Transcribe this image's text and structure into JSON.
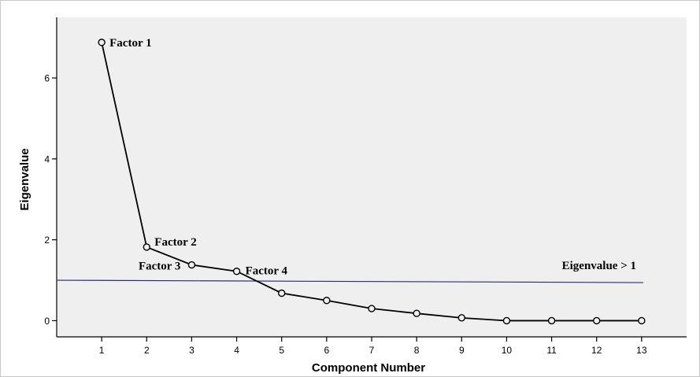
{
  "chart_data": {
    "type": "line",
    "title": "",
    "xlabel": "Component Number",
    "ylabel": "Eigenvalue",
    "x": [
      1,
      2,
      3,
      4,
      5,
      6,
      7,
      8,
      9,
      10,
      11,
      12,
      13
    ],
    "series": [
      {
        "values": [
          6.88,
          1.82,
          1.38,
          1.22,
          0.68,
          0.5,
          0.3,
          0.18,
          0.07,
          0.0,
          0.0,
          0.0,
          0.0
        ]
      }
    ],
    "xticks": [
      "1",
      "2",
      "3",
      "4",
      "5",
      "6",
      "7",
      "8",
      "9",
      "10",
      "11",
      "12",
      "13"
    ],
    "yticks": [
      "0",
      "2",
      "4",
      "6"
    ],
    "xlim": [
      0,
      14
    ],
    "ylim": [
      -0.4,
      7.5
    ],
    "grid": false,
    "reference_line": {
      "y": 1.0,
      "label": "Eigenvalue > 1"
    },
    "annotations": [
      {
        "text": "Factor 1",
        "x": 1
      },
      {
        "text": "Factor 2",
        "x": 2
      },
      {
        "text": "Factor 3",
        "x": 3
      },
      {
        "text": "Factor 4",
        "x": 4
      }
    ],
    "colors": {
      "plot_background": "#efefef",
      "line": "#000000",
      "reference_line": "#2b2b7a"
    }
  }
}
